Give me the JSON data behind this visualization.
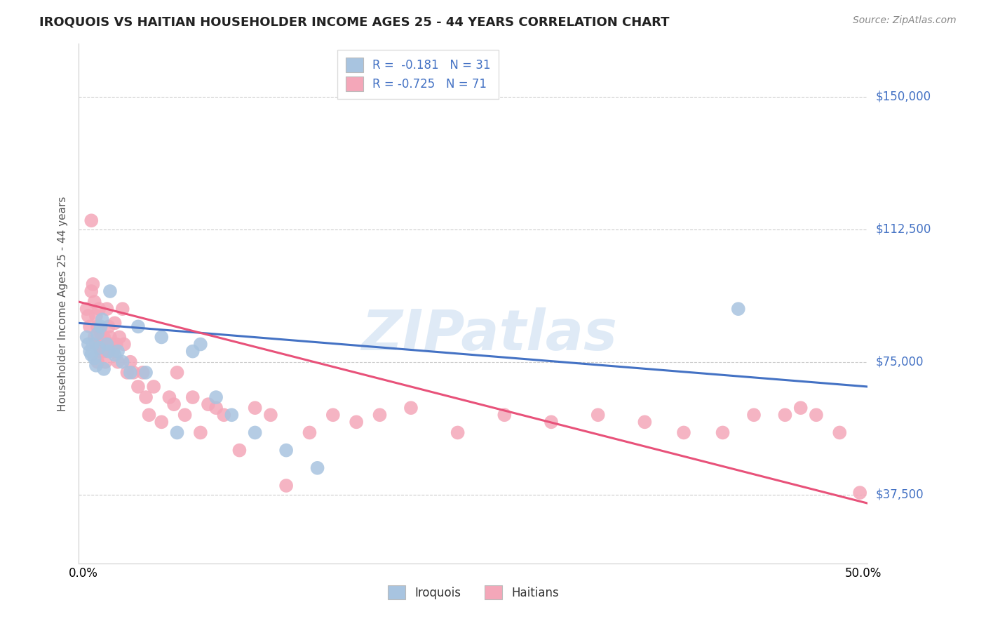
{
  "title": "IROQUOIS VS HAITIAN HOUSEHOLDER INCOME AGES 25 - 44 YEARS CORRELATION CHART",
  "source": "Source: ZipAtlas.com",
  "ylabel": "Householder Income Ages 25 - 44 years",
  "ytick_labels": [
    "$37,500",
    "$75,000",
    "$112,500",
    "$150,000"
  ],
  "ytick_values": [
    37500,
    75000,
    112500,
    150000
  ],
  "ylim": [
    18000,
    165000
  ],
  "xlim": [
    -0.003,
    0.503
  ],
  "legend_iroquois_R": "R =  -0.181",
  "legend_iroquois_N": "N = 31",
  "legend_haitians_R": "R = -0.725",
  "legend_haitians_N": "N = 71",
  "bottom_legend_iroquois": "Iroquois",
  "bottom_legend_haitians": "Haitians",
  "iroquois_color": "#a8c4e0",
  "iroquois_line_color": "#4472c4",
  "haitians_color": "#f4a7b9",
  "haitians_line_color": "#e8527a",
  "watermark": "ZIPatlas",
  "axis_label_color": "#4472c4",
  "iroquois_x": [
    0.002,
    0.003,
    0.004,
    0.005,
    0.006,
    0.007,
    0.008,
    0.009,
    0.01,
    0.011,
    0.012,
    0.013,
    0.015,
    0.016,
    0.017,
    0.02,
    0.022,
    0.025,
    0.03,
    0.035,
    0.04,
    0.05,
    0.06,
    0.07,
    0.075,
    0.085,
    0.095,
    0.11,
    0.13,
    0.15,
    0.42
  ],
  "iroquois_y": [
    82000,
    80000,
    78000,
    77000,
    80000,
    76000,
    74000,
    83000,
    79000,
    85000,
    87000,
    73000,
    80000,
    78000,
    95000,
    77000,
    78000,
    75000,
    72000,
    85000,
    72000,
    82000,
    55000,
    78000,
    80000,
    65000,
    60000,
    55000,
    50000,
    45000,
    90000
  ],
  "haitians_x": [
    0.002,
    0.003,
    0.004,
    0.005,
    0.005,
    0.006,
    0.007,
    0.007,
    0.008,
    0.008,
    0.009,
    0.009,
    0.01,
    0.01,
    0.011,
    0.011,
    0.012,
    0.013,
    0.013,
    0.014,
    0.015,
    0.016,
    0.017,
    0.018,
    0.019,
    0.02,
    0.021,
    0.022,
    0.023,
    0.025,
    0.026,
    0.028,
    0.03,
    0.032,
    0.035,
    0.038,
    0.04,
    0.042,
    0.045,
    0.05,
    0.055,
    0.058,
    0.06,
    0.065,
    0.07,
    0.075,
    0.08,
    0.085,
    0.09,
    0.1,
    0.11,
    0.12,
    0.13,
    0.145,
    0.16,
    0.175,
    0.19,
    0.21,
    0.24,
    0.27,
    0.3,
    0.33,
    0.36,
    0.385,
    0.41,
    0.43,
    0.45,
    0.46,
    0.47,
    0.485,
    0.498
  ],
  "haitians_y": [
    90000,
    88000,
    85000,
    115000,
    95000,
    97000,
    92000,
    82000,
    88000,
    80000,
    85000,
    75000,
    90000,
    80000,
    83000,
    78000,
    80000,
    82000,
    78000,
    75000,
    90000,
    85000,
    82000,
    80000,
    78000,
    86000,
    80000,
    75000,
    82000,
    90000,
    80000,
    72000,
    75000,
    72000,
    68000,
    72000,
    65000,
    60000,
    68000,
    58000,
    65000,
    63000,
    72000,
    60000,
    65000,
    55000,
    63000,
    62000,
    60000,
    50000,
    62000,
    60000,
    40000,
    55000,
    60000,
    58000,
    60000,
    62000,
    55000,
    60000,
    58000,
    60000,
    58000,
    55000,
    55000,
    60000,
    60000,
    62000,
    60000,
    55000,
    38000
  ]
}
